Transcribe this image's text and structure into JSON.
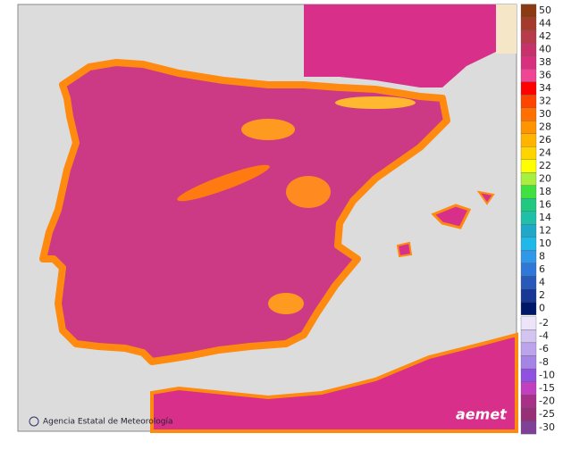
{
  "legend": {
    "items": [
      {
        "label": "50",
        "color": "#8b3a12"
      },
      {
        "label": "44",
        "color": "#a33a2a"
      },
      {
        "label": "42",
        "color": "#b83b4a"
      },
      {
        "label": "40",
        "color": "#c8326a"
      },
      {
        "label": "38",
        "color": "#d8307e"
      },
      {
        "label": "36",
        "color": "#f04494"
      },
      {
        "label": "34",
        "color": "#ff0000"
      },
      {
        "label": "32",
        "color": "#ff4400"
      },
      {
        "label": "30",
        "color": "#ff7000"
      },
      {
        "label": "28",
        "color": "#ff9400"
      },
      {
        "label": "26",
        "color": "#ffb400"
      },
      {
        "label": "24",
        "color": "#ffd400"
      },
      {
        "label": "22",
        "color": "#ffff00"
      },
      {
        "label": "20",
        "color": "#a8f040"
      },
      {
        "label": "18",
        "color": "#40e040"
      },
      {
        "label": "16",
        "color": "#20c880"
      },
      {
        "label": "14",
        "color": "#20c0a8"
      },
      {
        "label": "12",
        "color": "#20a8c8"
      },
      {
        "label": "10",
        "color": "#20b8e8"
      },
      {
        "label": "8",
        "color": "#3098e8"
      },
      {
        "label": "6",
        "color": "#3078d8"
      },
      {
        "label": "4",
        "color": "#2858b8"
      },
      {
        "label": "2",
        "color": "#183898"
      },
      {
        "label": "0",
        "color": "#001868"
      },
      {
        "label": "-2",
        "color": "#ece4f8"
      },
      {
        "label": "-4",
        "color": "#d4c4f0"
      },
      {
        "label": "-6",
        "color": "#bca4ec"
      },
      {
        "label": "-8",
        "color": "#a484e4"
      },
      {
        "label": "-10",
        "color": "#9050e0"
      },
      {
        "label": "-15",
        "color": "#c040c0"
      },
      {
        "label": "-20",
        "color": "#a83088"
      },
      {
        "label": "-25",
        "color": "#983078"
      },
      {
        "label": "-30",
        "color": "#804098"
      }
    ]
  },
  "credits": {
    "agency": "Agencia Estatal de Meteorología",
    "logo": "aemet"
  }
}
